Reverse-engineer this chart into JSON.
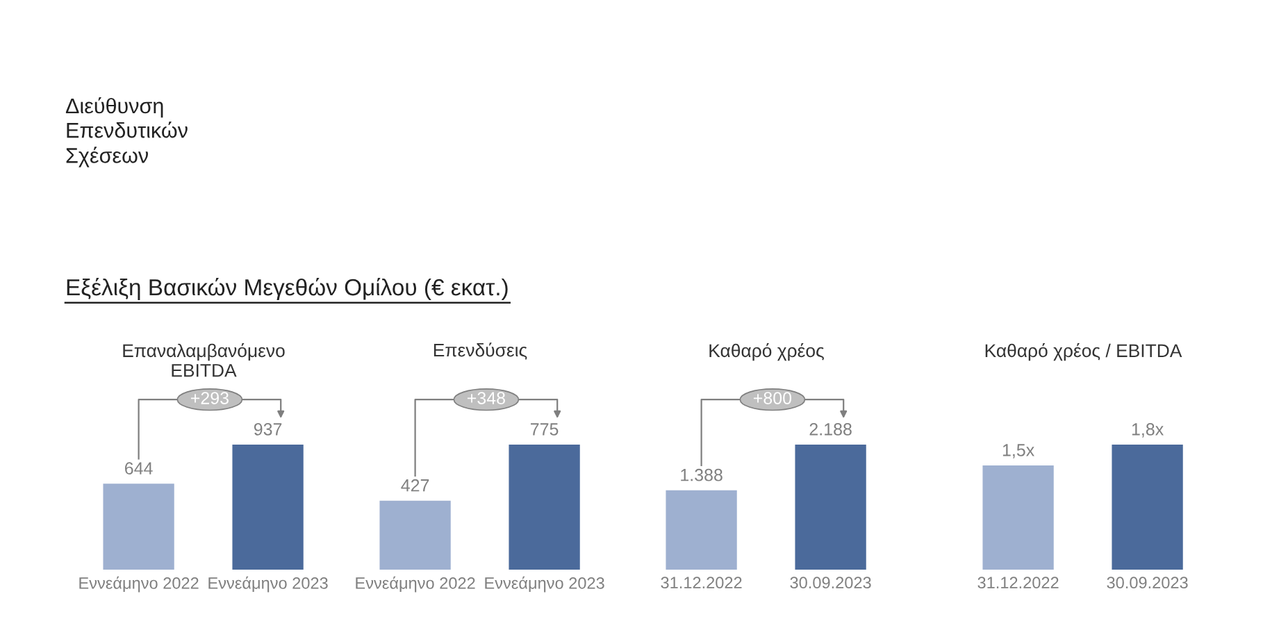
{
  "chart_data": [
    {
      "type": "other",
      "title": "Εξέλιξη Βασικών Μεγεθών Ομίλου (€ εκατ.)",
      "annotations": [
        "Διεύθυνση\nΕπενδυτικών\nΣχέσεων"
      ]
    },
    {
      "type": "bar",
      "title": "Επαναλαμβανόμενο\nEBITDA",
      "categories": [
        "Εννεάμηνο 2022",
        "Εννεάμηνο 2023"
      ],
      "values": [
        644,
        937
      ],
      "value_labels": [
        "644",
        "937"
      ],
      "colors": [
        "#9eb0d0",
        "#4b6a9b"
      ],
      "annotations": [
        "+293"
      ]
    },
    {
      "type": "bar",
      "title": "Επενδύσεις",
      "categories": [
        "Εννεάμηνο 2022",
        "Εννεάμηνο 2023"
      ],
      "values": [
        427,
        775
      ],
      "value_labels": [
        "427",
        "775"
      ],
      "colors": [
        "#9eb0d0",
        "#4b6a9b"
      ],
      "annotations": [
        "+348"
      ]
    },
    {
      "type": "bar",
      "title": "Καθαρό χρέος",
      "categories": [
        "31.12.2022",
        "30.09.2023"
      ],
      "values": [
        1388,
        2188
      ],
      "value_labels": [
        "1.388",
        "2.188"
      ],
      "colors": [
        "#9eb0d0",
        "#4b6a9b"
      ],
      "annotations": [
        "+800"
      ]
    },
    {
      "type": "bar",
      "title": "Καθαρό χρέος / EBITDA",
      "categories": [
        "31.12.2022",
        "30.09.2023"
      ],
      "values": [
        1.5,
        1.8
      ],
      "value_labels": [
        "1,5x",
        "1,8x"
      ],
      "colors": [
        "#9eb0d0",
        "#4b6a9b"
      ]
    }
  ]
}
